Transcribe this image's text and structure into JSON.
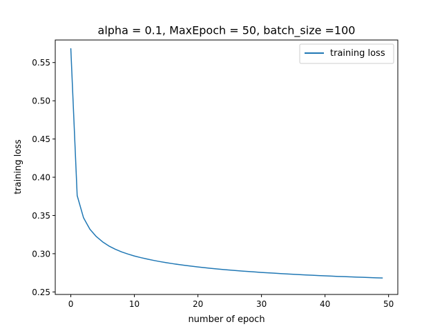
{
  "chart_data": {
    "type": "line",
    "title": "alpha = 0.1, MaxEpoch = 50, batch_size =100",
    "xlabel": "number of epoch",
    "ylabel": "training loss",
    "xlim": [
      -2.45,
      51.45
    ],
    "ylim": [
      0.2467,
      0.5795
    ],
    "x_ticks": [
      0,
      10,
      20,
      30,
      40,
      50
    ],
    "y_ticks": [
      0.25,
      0.3,
      0.35,
      0.4,
      0.45,
      0.5,
      0.55
    ],
    "x_tick_labels": [
      "0",
      "10",
      "20",
      "30",
      "40",
      "50"
    ],
    "y_tick_labels": [
      "0.25",
      "0.30",
      "0.35",
      "0.40",
      "0.45",
      "0.50",
      "0.55"
    ],
    "grid": false,
    "legend_position": "upper right",
    "series": [
      {
        "name": "training loss",
        "color": "#1f77b4",
        "x": [
          0,
          1,
          2,
          3,
          4,
          5,
          6,
          7,
          8,
          9,
          10,
          11,
          12,
          13,
          14,
          15,
          16,
          17,
          18,
          19,
          20,
          21,
          22,
          23,
          24,
          25,
          26,
          27,
          28,
          29,
          30,
          31,
          32,
          33,
          34,
          35,
          36,
          37,
          38,
          39,
          40,
          41,
          42,
          43,
          44,
          45,
          46,
          47,
          48,
          49
        ],
        "values": [
          0.568,
          0.376,
          0.347,
          0.332,
          0.3225,
          0.3155,
          0.31,
          0.3058,
          0.3023,
          0.2995,
          0.297,
          0.2949,
          0.293,
          0.2913,
          0.2897,
          0.2883,
          0.287,
          0.2858,
          0.2847,
          0.2837,
          0.2827,
          0.2818,
          0.2809,
          0.2801,
          0.2793,
          0.2786,
          0.2779,
          0.2773,
          0.2767,
          0.2761,
          0.2755,
          0.275,
          0.2745,
          0.274,
          0.2735,
          0.2731,
          0.2726,
          0.2722,
          0.2718,
          0.2714,
          0.271,
          0.2707,
          0.2703,
          0.27,
          0.2697,
          0.2694,
          0.2691,
          0.2688,
          0.2685,
          0.2682
        ]
      }
    ]
  }
}
